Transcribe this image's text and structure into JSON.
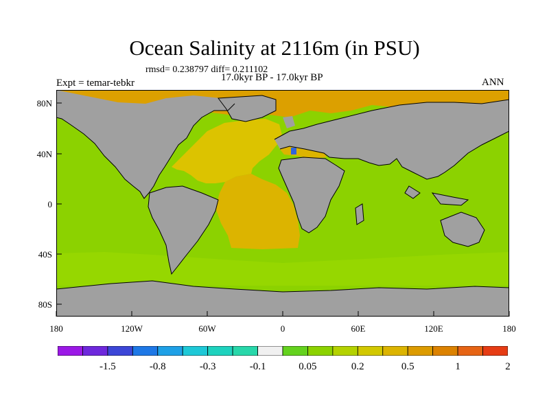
{
  "title": "Ocean Salinity at 2116m (in PSU)",
  "stats_line": "rmsd= 0.238797 diff= 0.211102",
  "period_line": "17.0kyr BP - 17.0kyr BP",
  "experiment_label": "Expt = temar-tebkr",
  "season_label": "ANN",
  "map": {
    "projection": "cylindrical-equidistant",
    "lon_range": [
      -180,
      180
    ],
    "lat_range": [
      -90,
      90
    ],
    "land_color": "#a0a0a0",
    "coastline_color": "#000000",
    "regions": {
      "arctic": "#dca000",
      "north_atlantic": "#dcc300",
      "south_atlantic": "#dcb400",
      "pacific_indian": "#8cd200",
      "southern_ocean": "#96d700",
      "mediterranean": "#dcb400",
      "deep_anomaly": "#3264dc"
    }
  },
  "lat_ticks": [
    "80N",
    "40N",
    "0",
    "40S",
    "80S"
  ],
  "lon_ticks": [
    "180",
    "120W",
    "60W",
    "0",
    "60E",
    "120E",
    "180"
  ],
  "colorbar": {
    "colors": [
      "#9b18e6",
      "#6e28dc",
      "#3c46d7",
      "#1e78e6",
      "#1ea0e6",
      "#1ec8d7",
      "#1ed2be",
      "#28d7aa",
      "#f0f0f0",
      "#64d21e",
      "#8cd200",
      "#b4d200",
      "#d2c800",
      "#dcb400",
      "#dc9b00",
      "#dc8200",
      "#e66414",
      "#e63c14"
    ],
    "labels": [
      "-1.5",
      "-0.8",
      "-0.3",
      "-0.1",
      "0.05",
      "0.2",
      "0.5",
      "1",
      "2"
    ],
    "label_boundaries": [
      2,
      4,
      6,
      8,
      10,
      12,
      14,
      16,
      18
    ]
  }
}
